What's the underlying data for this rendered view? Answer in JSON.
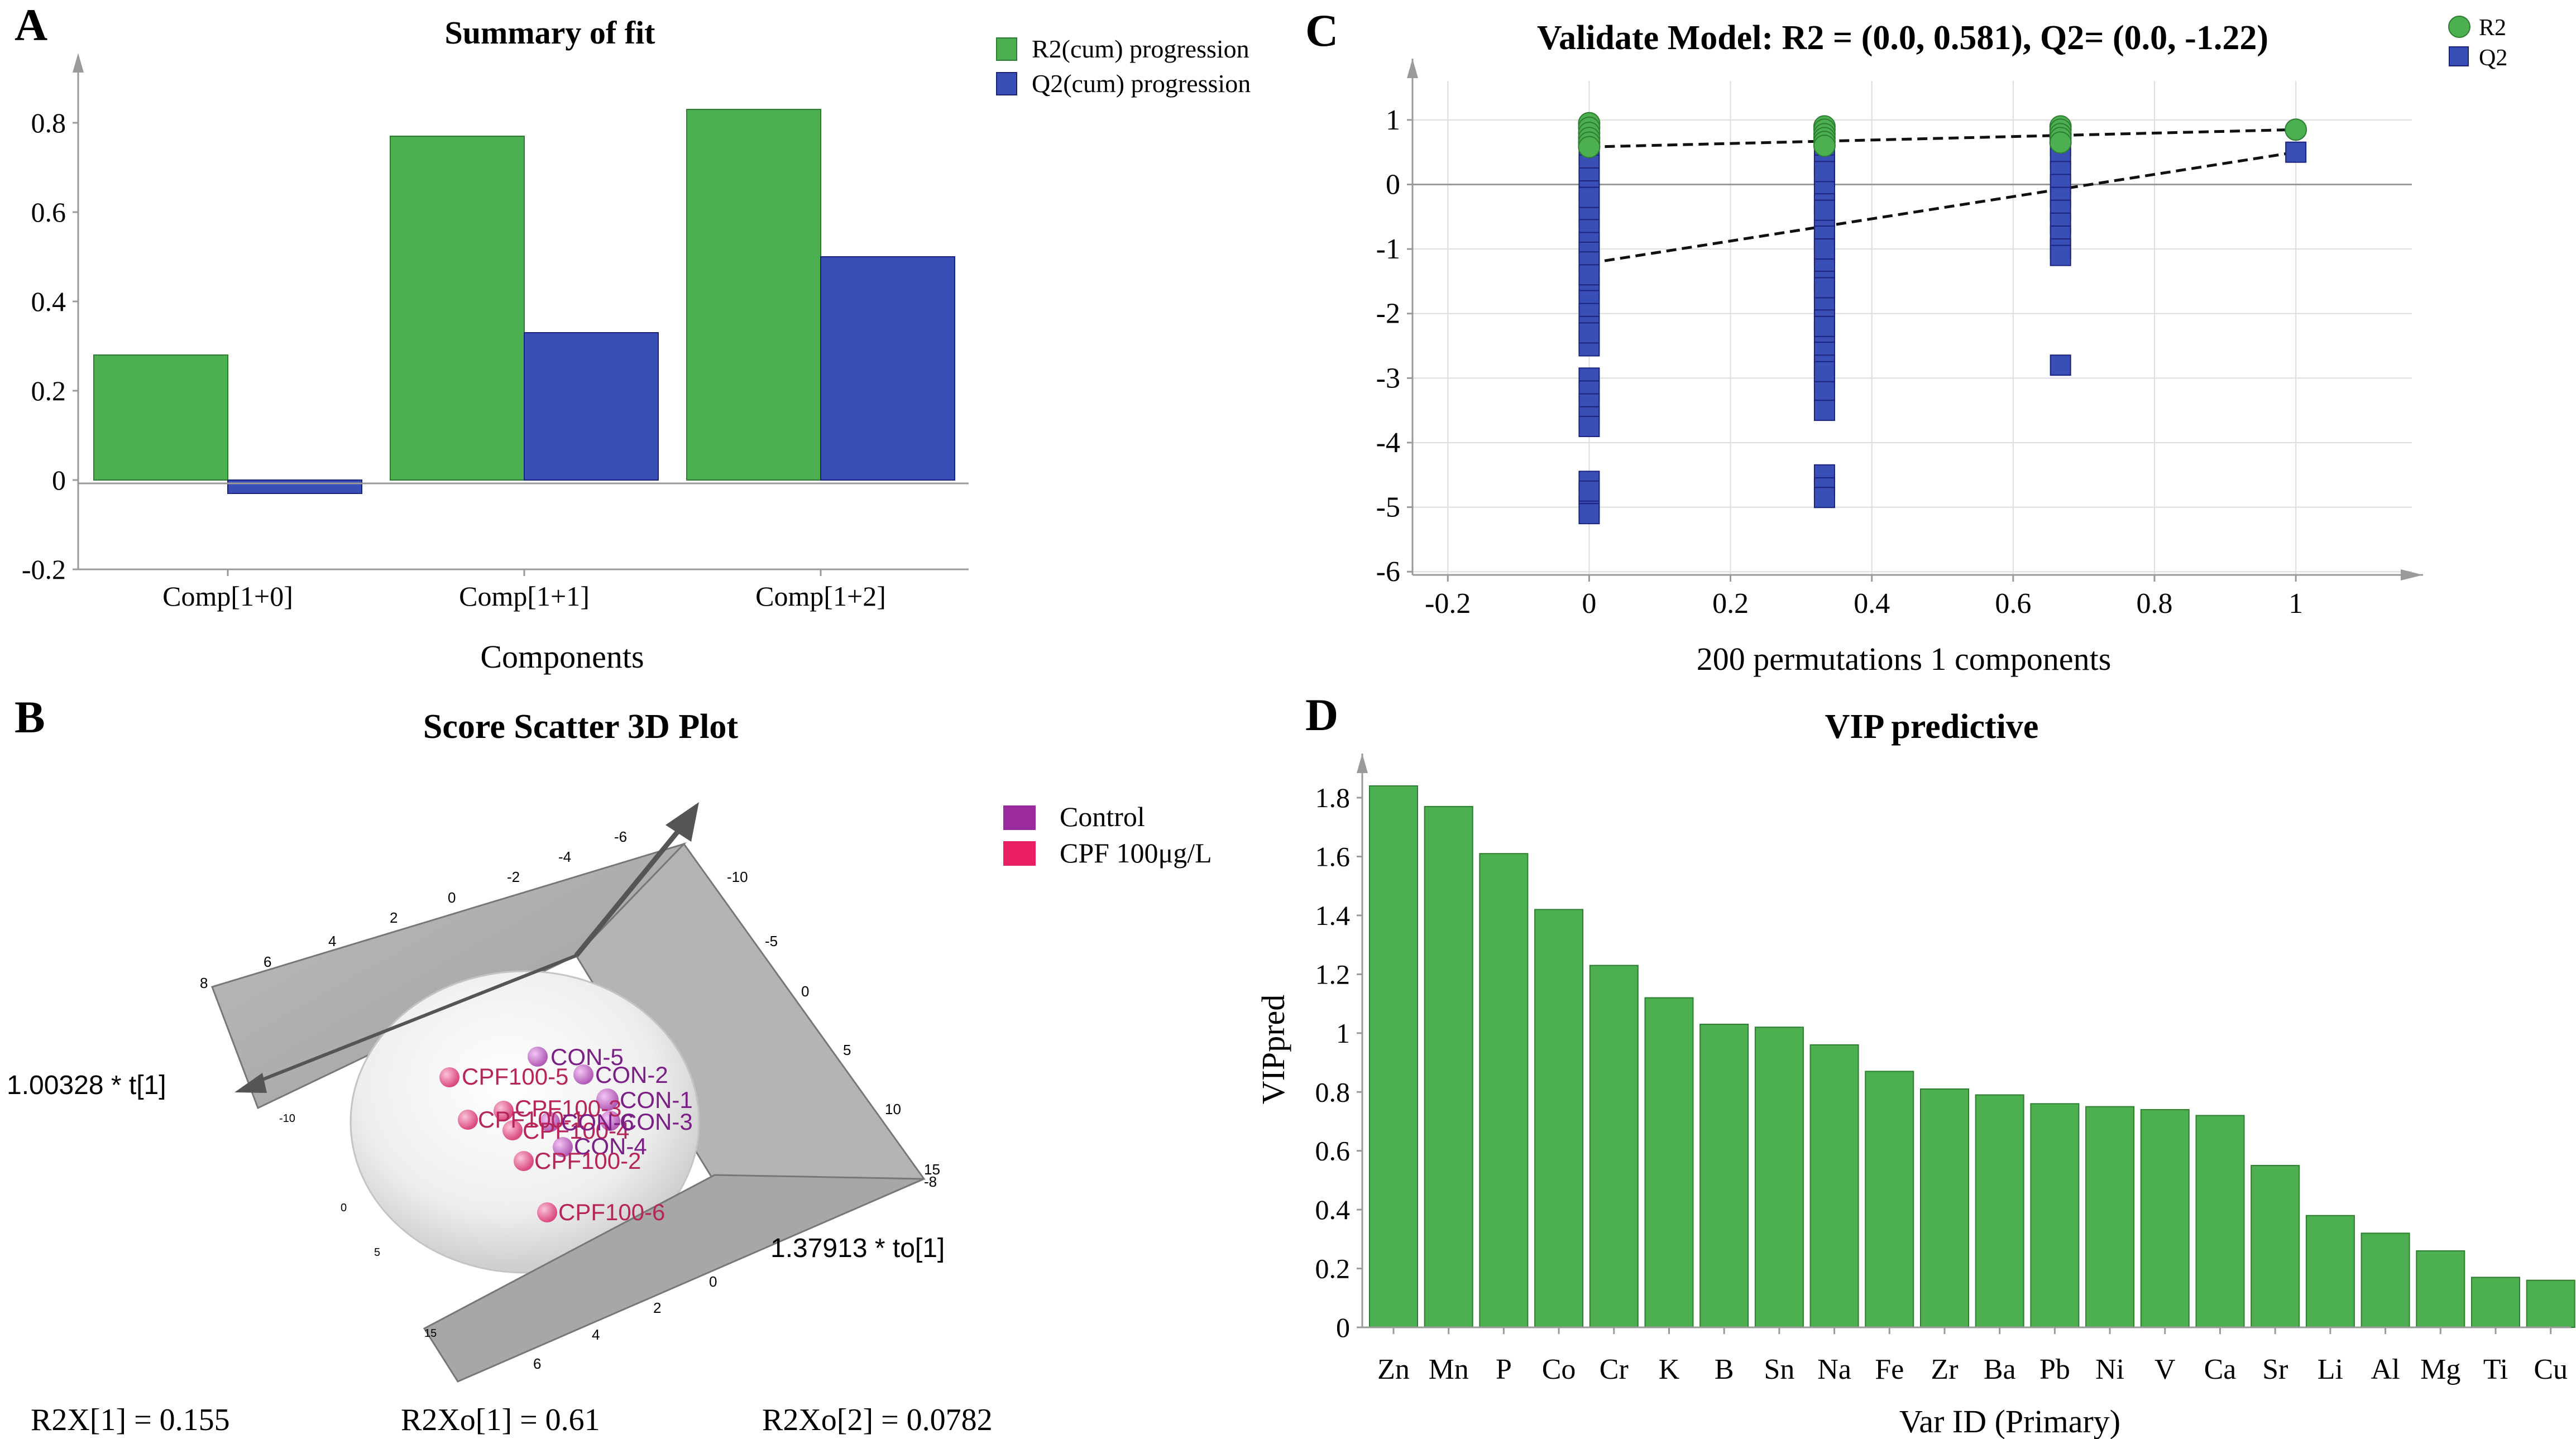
{
  "colors": {
    "green": "#4CAF50",
    "blue": "#3A4FB5",
    "purple": "#9B2A9F",
    "pink": "#E91E63",
    "axis": "#9a9a9a",
    "grid": "#dddddd"
  },
  "panel_letters": {
    "a": "A",
    "b": "B",
    "c": "C",
    "d": "D"
  },
  "chart_data": [
    {
      "panel": "A",
      "type": "bar",
      "title": "Summary of fit",
      "xlabel": "Components",
      "ylabel": "",
      "categories": [
        "Comp[1+0]",
        "Comp[1+1]",
        "Comp[1+2]"
      ],
      "series": [
        {
          "name": "R2(cum) progression",
          "values": [
            0.28,
            0.77,
            0.83
          ]
        },
        {
          "name": "Q2(cum) progression",
          "values": [
            -0.03,
            0.33,
            0.5
          ]
        }
      ],
      "ylim": [
        -0.2,
        0.95
      ],
      "yticks": [
        -0.2,
        0,
        0.2,
        0.4,
        0.6,
        0.8
      ],
      "ytick_labels": [
        "-0.2",
        "0",
        "0.2",
        "0.4",
        "0.6",
        "0.8"
      ],
      "legend": "top-right"
    },
    {
      "panel": "B",
      "type": "scatter",
      "title": "Score Scatter 3D Plot",
      "axis_labels": [
        "1.00328 * t[1]",
        "1.37913 * to[1]"
      ],
      "legend": [
        {
          "name": "Control"
        },
        {
          "name": "CPF 100μg/L"
        }
      ],
      "points": [
        {
          "label": "CON-5",
          "group": "Control"
        },
        {
          "label": "CON-2",
          "group": "Control"
        },
        {
          "label": "CON-1",
          "group": "Control"
        },
        {
          "label": "CON-3",
          "group": "Control"
        },
        {
          "label": "CON-4",
          "group": "Control"
        },
        {
          "label": "CON-6",
          "group": "Control"
        },
        {
          "label": "CPF100-5",
          "group": "CPF 100μg/L"
        },
        {
          "label": "CPF100-1",
          "group": "CPF 100μg/L"
        },
        {
          "label": "CPF100-3",
          "group": "CPF 100μg/L"
        },
        {
          "label": "CPF100-4",
          "group": "CPF 100μg/L"
        },
        {
          "label": "CPF100-2",
          "group": "CPF 100μg/L"
        },
        {
          "label": "CPF100-6",
          "group": "CPF 100μg/L"
        }
      ],
      "stats": [
        "R2X[1] = 0.155",
        "R2Xo[1] = 0.61",
        "R2Xo[2] = 0.0782"
      ],
      "tick_labels_left": [
        "6",
        "4",
        "2",
        "0",
        "-2",
        "-4",
        "-6"
      ],
      "tick_labels_right": [
        "-10",
        "-5",
        "0",
        "5",
        "10",
        "15"
      ],
      "tick_labels_bottom": [
        "0",
        "2",
        "4",
        "6"
      ],
      "tick_labels_side": [
        "8",
        "-10",
        "0",
        "5",
        "15",
        "-8"
      ]
    },
    {
      "panel": "C",
      "type": "scatter",
      "title": "Validate Model: R2 = (0.0, 0.581), Q2= (0.0, -1.22)",
      "xlabel": "200 permutations 1 components",
      "ylabel": "",
      "xlim": [
        -0.25,
        1.18
      ],
      "ylim": [
        -6.05,
        1.95
      ],
      "xticks": [
        -0.2,
        0,
        0.2,
        0.4,
        0.6,
        0.8,
        1
      ],
      "xtick_labels": [
        "-0.2",
        "0",
        "0.2",
        "0.4",
        "0.6",
        "0.8",
        "1"
      ],
      "yticks": [
        1,
        0,
        -1,
        -2,
        -3,
        -4,
        -5,
        -6
      ],
      "ytick_labels": [
        "1",
        "0",
        "-1",
        "-2",
        "-3",
        "-4",
        "-5",
        "-6"
      ],
      "series": [
        {
          "name": "R2",
          "marker": "circle",
          "x": [
            0,
            0,
            0,
            0,
            0,
            0,
            0.333,
            0.333,
            0.333,
            0.333,
            0.333,
            0.333,
            0.667,
            0.667,
            0.667,
            0.667,
            0.667,
            1
          ],
          "y": [
            0.95,
            0.88,
            0.8,
            0.72,
            0.65,
            0.58,
            0.9,
            0.85,
            0.78,
            0.72,
            0.66,
            0.6,
            0.9,
            0.85,
            0.78,
            0.72,
            0.65,
            0.85
          ]
        },
        {
          "name": "Q2",
          "marker": "square",
          "x": [
            0,
            0,
            0,
            0,
            0,
            0,
            0,
            0,
            0,
            0,
            0,
            0,
            0,
            0,
            0,
            0,
            0,
            0,
            0,
            0,
            0,
            0,
            0,
            0,
            0,
            0,
            0,
            0,
            0,
            0,
            0.333,
            0.333,
            0.333,
            0.333,
            0.333,
            0.333,
            0.333,
            0.333,
            0.333,
            0.333,
            0.333,
            0.333,
            0.333,
            0.333,
            0.333,
            0.333,
            0.333,
            0.333,
            0.333,
            0.333,
            0.333,
            0.333,
            0.333,
            0.333,
            0.333,
            0.333,
            0.333,
            0.333,
            0.333,
            0.333,
            0.333,
            0.667,
            0.667,
            0.667,
            0.667,
            0.667,
            0.667,
            0.667,
            0.667,
            0.667,
            0.667,
            0.667,
            1
          ],
          "y": [
            0.7,
            0.5,
            0.3,
            0.1,
            -0.1,
            -0.3,
            -0.5,
            -0.7,
            -0.9,
            -1.05,
            -1.2,
            -1.6,
            -1.8,
            -2.0,
            -2.2,
            -2.4,
            -2.5,
            -3.0,
            -3.2,
            -3.4,
            -3.6,
            -3.75,
            -4.6,
            -4.8,
            -5.0,
            -5.1,
            -4.75,
            -2.3,
            -1.4,
            -0.2,
            0.7,
            0.5,
            0.3,
            0.1,
            -0.1,
            -0.3,
            -0.5,
            -0.7,
            -0.9,
            -1.1,
            -1.3,
            -1.5,
            -1.7,
            -1.9,
            -2.1,
            -2.3,
            -2.6,
            -2.8,
            -3.0,
            -3.2,
            -3.5,
            -4.5,
            -4.7,
            -4.85,
            -0.8,
            -1.6,
            -2.2,
            -1.0,
            -0.4,
            0.2,
            -2.9,
            0.6,
            0.4,
            0.2,
            0.0,
            -0.2,
            -0.4,
            -0.6,
            -0.8,
            -1.0,
            -1.1,
            -2.8,
            0.5
          ]
        }
      ],
      "fit_lines": [
        {
          "name": "R2",
          "x0": 0,
          "y0": 0.581,
          "x1": 1,
          "y1": 0.85
        },
        {
          "name": "Q2",
          "x0": 0,
          "y0": -1.22,
          "x1": 1,
          "y1": 0.5
        }
      ],
      "legend": "top-right"
    },
    {
      "panel": "D",
      "type": "bar",
      "title": "VIP predictive",
      "xlabel": "Var ID (Primary)",
      "ylabel": "VIPpred",
      "categories": [
        "Zn",
        "Mn",
        "P",
        "Co",
        "Cr",
        "K",
        "B",
        "Sn",
        "Na",
        "Fe",
        "Zr",
        "Ba",
        "Pb",
        "Ni",
        "V",
        "Ca",
        "Sr",
        "Li",
        "Al",
        "Mg",
        "Ti",
        "Cu"
      ],
      "values": [
        1.84,
        1.77,
        1.61,
        1.42,
        1.23,
        1.12,
        1.03,
        1.02,
        0.96,
        0.87,
        0.81,
        0.79,
        0.76,
        0.75,
        0.74,
        0.72,
        0.55,
        0.38,
        0.32,
        0.26,
        0.17,
        0.16
      ],
      "ylim": [
        0,
        1.95
      ],
      "yticks": [
        0,
        0.2,
        0.4,
        0.6,
        0.8,
        1,
        1.2,
        1.4,
        1.6,
        1.8
      ],
      "ytick_labels": [
        "0",
        "0.2",
        "0.4",
        "0.6",
        "0.8",
        "1",
        "1.2",
        "1.4",
        "1.6",
        "1.8"
      ]
    }
  ]
}
